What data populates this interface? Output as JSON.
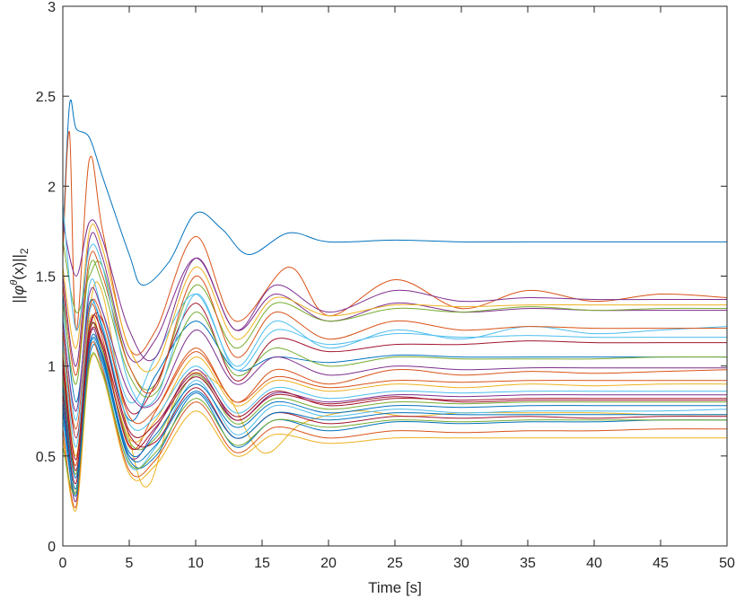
{
  "chart_data": {
    "type": "line",
    "title": "",
    "xlabel": "Time [s]",
    "ylabel": "||φθ(x)||2",
    "ylabel_parts": {
      "open": "||",
      "phi": "φ",
      "theta": "θ",
      "arg": "(x)||",
      "sub": "2"
    },
    "xlim": [
      0,
      50
    ],
    "ylim": [
      0,
      3
    ],
    "xticks": [
      "0",
      "5",
      "10",
      "15",
      "20",
      "25",
      "30",
      "35",
      "40",
      "45",
      "50"
    ],
    "yticks": [
      "0",
      "0.5",
      "1",
      "1.5",
      "2",
      "2.5",
      "3"
    ],
    "grid": false,
    "legend": "none",
    "colors": [
      "#0072BD",
      "#D95319",
      "#EDB120",
      "#7E2F8E",
      "#77AC30",
      "#4DBEEE",
      "#A2142F"
    ],
    "series": [
      {
        "x": [
          0,
          0.5,
          1,
          2,
          3,
          5,
          6,
          8,
          10,
          12,
          14,
          17,
          20,
          25,
          30,
          35,
          40,
          45,
          50
        ],
        "values": [
          1.68,
          2.45,
          2.32,
          2.27,
          2.05,
          1.62,
          1.45,
          1.58,
          1.85,
          1.76,
          1.62,
          1.74,
          1.69,
          1.7,
          1.69,
          1.69,
          1.69,
          1.69,
          1.69
        ]
      },
      {
        "x": [
          0,
          0.5,
          1,
          2,
          3,
          5,
          7,
          10,
          13,
          17,
          20,
          25,
          30,
          35,
          40,
          45,
          50
        ],
        "values": [
          1.6,
          2.3,
          1.2,
          2.15,
          1.75,
          1.1,
          1.2,
          1.72,
          1.25,
          1.55,
          1.28,
          1.48,
          1.32,
          1.42,
          1.36,
          1.4,
          1.38
        ]
      },
      {
        "x": [
          0,
          1,
          2,
          3,
          5,
          6.5,
          9,
          12,
          15,
          18,
          22,
          26,
          30,
          35,
          40,
          45,
          50
        ],
        "values": [
          0.9,
          0.3,
          1.3,
          1.4,
          0.6,
          0.34,
          0.92,
          0.88,
          0.52,
          0.68,
          0.75,
          0.72,
          0.74,
          0.74,
          0.74,
          0.73,
          0.73
        ]
      },
      {
        "x": [
          0,
          1,
          2,
          3,
          5,
          7,
          10,
          13,
          16,
          20,
          25,
          30,
          35,
          40,
          45,
          50
        ],
        "values": [
          1.5,
          1.0,
          1.7,
          1.6,
          1.05,
          1.15,
          1.6,
          1.2,
          1.4,
          1.25,
          1.35,
          1.3,
          1.32,
          1.31,
          1.31,
          1.31
        ]
      },
      {
        "x": [
          0,
          1,
          2,
          3,
          5,
          7,
          10,
          13,
          16,
          20,
          25,
          30,
          35,
          40,
          45,
          50
        ],
        "values": [
          1.7,
          1.3,
          1.5,
          1.55,
          1.0,
          0.9,
          1.45,
          1.1,
          1.35,
          1.25,
          1.32,
          1.3,
          1.33,
          1.31,
          1.32,
          1.32
        ]
      },
      {
        "x": [
          0,
          1,
          2,
          3,
          5,
          7,
          10,
          13,
          16,
          20,
          25,
          30,
          35,
          40,
          45,
          50
        ],
        "values": [
          1.3,
          0.7,
          1.45,
          1.3,
          0.8,
          1.05,
          1.4,
          1.0,
          1.25,
          1.1,
          1.2,
          1.15,
          1.22,
          1.18,
          1.2,
          1.22
        ]
      },
      {
        "x": [
          0,
          1,
          2,
          3,
          5,
          7,
          10,
          13,
          16,
          20,
          25,
          30,
          35,
          40,
          45,
          50
        ],
        "values": [
          1.2,
          0.6,
          1.2,
          1.25,
          0.75,
          0.9,
          1.35,
          0.92,
          1.15,
          1.08,
          1.12,
          1.12,
          1.14,
          1.13,
          1.13,
          1.13
        ]
      },
      {
        "x": [
          0,
          1,
          2,
          3,
          5,
          7,
          10,
          13,
          16,
          20,
          25,
          30,
          35,
          40,
          45,
          50
        ],
        "values": [
          1.4,
          0.8,
          1.35,
          1.2,
          0.7,
          0.95,
          1.25,
          0.98,
          1.05,
          1.02,
          1.06,
          1.05,
          1.05,
          1.05,
          1.05,
          1.05
        ]
      },
      {
        "x": [
          0,
          1,
          2,
          3,
          5,
          7,
          10,
          13,
          16,
          20,
          25,
          30,
          35,
          40,
          45,
          50
        ],
        "values": [
          1.0,
          0.45,
          1.3,
          1.15,
          0.55,
          0.75,
          1.1,
          0.8,
          0.98,
          0.9,
          0.98,
          0.95,
          0.97,
          0.96,
          0.97,
          0.98
        ]
      },
      {
        "x": [
          0,
          1,
          2,
          3,
          5,
          7,
          10,
          13,
          16,
          20,
          25,
          30,
          35,
          40,
          45,
          50
        ],
        "values": [
          1.1,
          0.5,
          1.25,
          1.1,
          0.6,
          0.7,
          1.05,
          0.78,
          0.92,
          0.86,
          0.9,
          0.88,
          0.9,
          0.89,
          0.9,
          0.9
        ]
      },
      {
        "x": [
          0,
          1,
          2,
          3,
          5,
          7,
          10,
          13,
          16,
          20,
          25,
          30,
          35,
          40,
          45,
          50
        ],
        "values": [
          0.8,
          0.25,
          1.15,
          1.05,
          0.5,
          0.65,
          0.98,
          0.7,
          0.85,
          0.8,
          0.84,
          0.83,
          0.84,
          0.84,
          0.84,
          0.84
        ]
      },
      {
        "x": [
          0,
          1,
          2,
          3,
          5,
          7,
          10,
          13,
          16,
          20,
          25,
          30,
          35,
          40,
          45,
          50
        ],
        "values": [
          0.95,
          0.4,
          1.2,
          1.08,
          0.58,
          0.6,
          0.95,
          0.68,
          0.82,
          0.76,
          0.8,
          0.79,
          0.8,
          0.8,
          0.8,
          0.8
        ]
      },
      {
        "x": [
          0,
          1,
          2,
          3,
          5,
          7,
          10,
          13,
          16,
          20,
          25,
          30,
          35,
          40,
          45,
          50
        ],
        "values": [
          0.7,
          0.3,
          1.1,
          1.0,
          0.45,
          0.55,
          0.92,
          0.62,
          0.78,
          0.72,
          0.76,
          0.74,
          0.75,
          0.75,
          0.75,
          0.76
        ]
      },
      {
        "x": [
          0,
          1,
          2,
          3,
          5,
          7,
          10,
          13,
          16,
          20,
          25,
          30,
          35,
          40,
          45,
          50
        ],
        "values": [
          0.85,
          0.35,
          1.18,
          1.12,
          0.62,
          0.58,
          0.88,
          0.6,
          0.74,
          0.68,
          0.72,
          0.71,
          0.72,
          0.71,
          0.72,
          0.72
        ]
      },
      {
        "x": [
          0,
          1,
          2,
          3,
          5,
          7,
          10,
          13,
          16,
          20,
          25,
          30,
          35,
          40,
          45,
          50
        ],
        "values": [
          0.75,
          0.28,
          1.05,
          1.02,
          0.48,
          0.5,
          0.85,
          0.55,
          0.7,
          0.64,
          0.69,
          0.68,
          0.69,
          0.69,
          0.7,
          0.7
        ]
      },
      {
        "x": [
          0,
          1,
          2,
          3,
          5,
          7,
          10,
          13,
          16,
          20,
          25,
          30,
          35,
          40,
          45,
          50
        ],
        "values": [
          0.65,
          0.22,
          1.08,
          0.98,
          0.42,
          0.48,
          0.8,
          0.52,
          0.66,
          0.6,
          0.64,
          0.63,
          0.64,
          0.64,
          0.65,
          0.65
        ]
      },
      {
        "x": [
          0,
          1,
          2,
          3,
          5,
          7,
          10,
          13,
          16,
          20,
          25,
          30,
          35,
          40,
          45,
          50
        ],
        "values": [
          0.6,
          0.2,
          1.0,
          0.95,
          0.4,
          0.45,
          0.75,
          0.5,
          0.62,
          0.57,
          0.6,
          0.6,
          0.6,
          0.6,
          0.6,
          0.6
        ]
      },
      {
        "x": [
          0,
          1,
          2,
          3,
          5,
          7,
          10,
          13,
          16,
          20,
          25,
          30,
          35,
          40,
          45,
          50
        ],
        "values": [
          1.25,
          0.75,
          1.4,
          1.3,
          0.85,
          0.8,
          1.2,
          0.9,
          1.05,
          0.95,
          1.0,
          0.98,
          0.99,
          0.99,
          0.99,
          0.99
        ]
      },
      {
        "x": [
          0,
          1,
          2,
          3,
          5,
          7,
          10,
          13,
          16,
          20,
          25,
          30,
          35,
          40,
          45,
          50
        ],
        "values": [
          1.35,
          0.9,
          1.55,
          1.45,
          0.95,
          0.85,
          1.3,
          0.95,
          1.1,
          1.0,
          1.05,
          1.04,
          1.04,
          1.04,
          1.05,
          1.05
        ]
      },
      {
        "x": [
          0,
          1,
          2,
          3,
          5,
          7,
          10,
          13,
          16,
          20,
          25,
          30,
          35,
          40,
          45,
          50
        ],
        "values": [
          1.15,
          0.55,
          1.3,
          1.22,
          0.68,
          0.72,
          1.0,
          0.74,
          0.88,
          0.82,
          0.86,
          0.85,
          0.86,
          0.86,
          0.86,
          0.86
        ]
      },
      {
        "x": [
          0,
          1,
          2,
          3,
          5,
          7,
          10,
          13,
          16,
          20,
          25,
          30,
          35,
          40,
          45,
          50
        ],
        "values": [
          1.05,
          0.48,
          1.22,
          1.18,
          0.64,
          0.68,
          0.96,
          0.72,
          0.86,
          0.78,
          0.82,
          0.81,
          0.82,
          0.82,
          0.82,
          0.82
        ]
      },
      {
        "x": [
          0,
          1,
          2,
          3,
          5,
          7,
          10,
          13,
          16,
          20,
          25,
          30,
          35,
          40,
          45,
          50
        ],
        "values": [
          0.9,
          0.38,
          1.12,
          1.06,
          0.52,
          0.62,
          0.9,
          0.66,
          0.8,
          0.74,
          0.78,
          0.77,
          0.78,
          0.78,
          0.78,
          0.78
        ]
      },
      {
        "x": [
          0,
          1,
          2,
          3,
          5,
          7,
          10,
          13,
          16,
          20,
          25,
          30,
          35,
          40,
          45,
          50
        ],
        "values": [
          1.45,
          0.95,
          1.6,
          1.5,
          1.0,
          0.88,
          1.5,
          1.05,
          1.3,
          1.15,
          1.25,
          1.2,
          1.22,
          1.21,
          1.21,
          1.21
        ]
      },
      {
        "x": [
          0,
          1,
          2,
          3,
          5,
          7,
          10,
          13,
          16,
          20,
          25,
          30,
          35,
          40,
          45,
          50
        ],
        "values": [
          1.55,
          1.1,
          1.75,
          1.65,
          1.1,
          1.0,
          1.55,
          1.15,
          1.38,
          1.28,
          1.34,
          1.33,
          1.34,
          1.34,
          1.34,
          1.34
        ]
      },
      {
        "x": [
          0,
          1,
          2,
          3,
          5,
          7,
          10,
          13,
          16,
          20,
          25,
          30,
          35,
          40,
          45,
          50
        ],
        "values": [
          1.8,
          1.5,
          1.8,
          1.7,
          1.2,
          1.05,
          1.6,
          1.2,
          1.45,
          1.3,
          1.42,
          1.36,
          1.38,
          1.37,
          1.37,
          1.37
        ]
      },
      {
        "x": [
          0,
          1,
          2,
          3,
          5,
          7,
          10,
          13,
          16,
          20,
          25,
          30,
          35,
          40,
          45,
          50
        ],
        "values": [
          0.55,
          0.3,
          1.02,
          0.96,
          0.46,
          0.52,
          0.82,
          0.56,
          0.7,
          0.66,
          0.7,
          0.69,
          0.7,
          0.7,
          0.7,
          0.7
        ]
      },
      {
        "x": [
          0,
          1,
          2,
          3,
          5,
          7,
          10,
          13,
          16,
          20,
          25,
          30,
          35,
          40,
          45,
          50
        ],
        "values": [
          1.9,
          1.2,
          1.65,
          1.55,
          0.9,
          0.82,
          1.4,
          0.98,
          1.2,
          1.12,
          1.18,
          1.16,
          1.17,
          1.16,
          1.16,
          1.16
        ]
      },
      {
        "x": [
          0,
          1,
          2,
          3,
          5,
          7,
          10,
          13,
          16,
          20,
          25,
          30,
          35,
          40,
          45,
          50
        ],
        "values": [
          1.0,
          0.42,
          1.16,
          1.1,
          0.56,
          0.66,
          0.94,
          0.7,
          0.84,
          0.79,
          0.83,
          0.8,
          0.81,
          0.81,
          0.81,
          0.81
        ]
      },
      {
        "x": [
          0,
          1,
          2,
          3,
          5,
          7,
          10,
          13,
          16,
          20,
          25,
          30,
          35,
          40,
          45,
          50
        ],
        "values": [
          0.8,
          0.32,
          1.1,
          1.04,
          0.5,
          0.56,
          0.86,
          0.6,
          0.74,
          0.7,
          0.74,
          0.73,
          0.73,
          0.73,
          0.73,
          0.73
        ]
      },
      {
        "x": [
          0,
          1,
          2,
          3,
          5,
          7,
          10,
          13,
          16,
          20,
          25,
          30,
          35,
          40,
          45,
          50
        ],
        "values": [
          1.2,
          0.65,
          1.32,
          1.26,
          0.72,
          0.76,
          1.08,
          0.8,
          0.94,
          0.88,
          0.92,
          0.91,
          0.92,
          0.92,
          0.92,
          0.92
        ]
      }
    ]
  }
}
